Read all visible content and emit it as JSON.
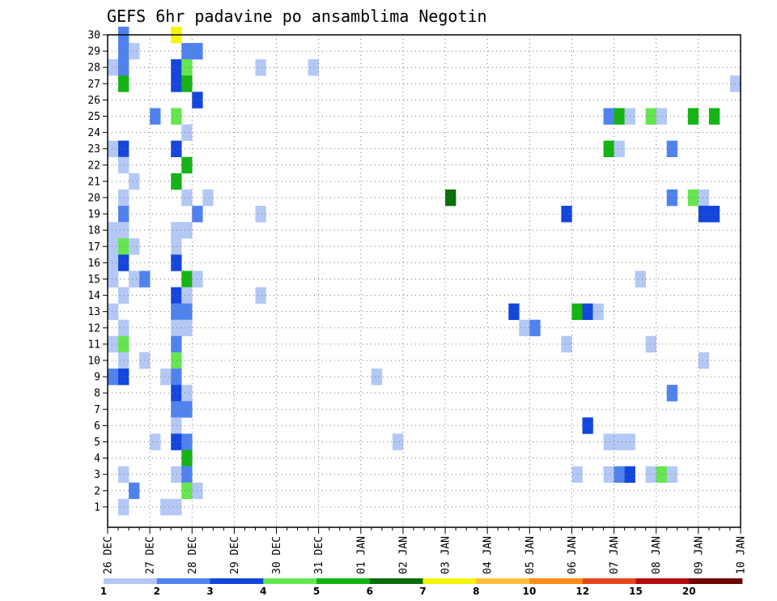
{
  "chart_data": {
    "type": "heatmap",
    "title": "GEFS 6hr padavine po ansamblima Negotin",
    "y_ticks": [
      "1",
      "2",
      "3",
      "4",
      "5",
      "6",
      "7",
      "8",
      "9",
      "10",
      "11",
      "12",
      "13",
      "14",
      "15",
      "16",
      "17",
      "18",
      "19",
      "20",
      "21",
      "22",
      "23",
      "24",
      "25",
      "26",
      "27",
      "28",
      "29",
      "30"
    ],
    "x_ticks": [
      "26 DEC",
      "27 DEC",
      "28 DEC",
      "29 DEC",
      "30 DEC",
      "31 DEC",
      "01 JAN",
      "02 JAN",
      "03 JAN",
      "04 JAN",
      "05 JAN",
      "06 JAN",
      "07 JAN",
      "08 JAN",
      "09 JAN",
      "10 JAN"
    ],
    "x_range_days": [
      0,
      15
    ],
    "y_range": [
      0,
      30
    ],
    "grid": true,
    "legend": {
      "placement": "bottom",
      "labels": [
        "1",
        "2",
        "3",
        "4",
        "5",
        "6",
        "7",
        "8",
        "10",
        "12",
        "15",
        "20"
      ],
      "colors": [
        "#b4c8f5",
        "#5082ef",
        "#1446dc",
        "#64e650",
        "#14b414",
        "#0a6e0a",
        "#f5f500",
        "#ffbe3c",
        "#ff8c14",
        "#e6461e",
        "#b40a0a",
        "#6e0000"
      ]
    },
    "cells": [
      [
        0.25,
        30,
        2
      ],
      [
        1.5,
        30,
        7
      ],
      [
        0.25,
        29,
        2
      ],
      [
        0.5,
        29,
        1
      ],
      [
        1.75,
        29,
        2
      ],
      [
        2.0,
        29,
        2
      ],
      [
        0.0,
        28,
        1
      ],
      [
        0.25,
        28,
        2
      ],
      [
        1.5,
        28,
        3
      ],
      [
        1.75,
        28,
        4
      ],
      [
        3.5,
        28,
        1
      ],
      [
        4.75,
        28,
        1
      ],
      [
        0.25,
        27,
        5
      ],
      [
        1.5,
        27,
        3
      ],
      [
        1.75,
        27,
        5
      ],
      [
        14.75,
        27,
        1
      ],
      [
        2.0,
        26,
        3
      ],
      [
        1.0,
        25,
        2
      ],
      [
        1.5,
        25,
        4
      ],
      [
        11.75,
        25,
        2
      ],
      [
        12.0,
        25,
        5
      ],
      [
        12.25,
        25,
        1
      ],
      [
        12.75,
        25,
        4
      ],
      [
        13.0,
        25,
        1
      ],
      [
        13.75,
        25,
        5
      ],
      [
        14.25,
        25,
        5
      ],
      [
        1.75,
        24,
        1
      ],
      [
        0.0,
        23,
        1
      ],
      [
        0.25,
        23,
        3
      ],
      [
        1.5,
        23,
        3
      ],
      [
        11.75,
        23,
        5
      ],
      [
        12.0,
        23,
        1
      ],
      [
        13.25,
        23,
        2
      ],
      [
        0.25,
        22,
        1
      ],
      [
        1.75,
        22,
        5
      ],
      [
        0.5,
        21,
        1
      ],
      [
        1.5,
        21,
        5
      ],
      [
        0.25,
        20,
        1
      ],
      [
        1.75,
        20,
        1
      ],
      [
        2.25,
        20,
        1
      ],
      [
        8.0,
        20,
        6
      ],
      [
        13.25,
        20,
        2
      ],
      [
        13.75,
        20,
        4
      ],
      [
        14.0,
        20,
        1
      ],
      [
        0.25,
        19,
        2
      ],
      [
        2.0,
        19,
        2
      ],
      [
        3.5,
        19,
        1
      ],
      [
        10.75,
        19,
        3
      ],
      [
        14.0,
        19,
        3
      ],
      [
        14.25,
        19,
        3
      ],
      [
        0.0,
        18,
        1
      ],
      [
        0.25,
        18,
        1
      ],
      [
        1.5,
        18,
        1
      ],
      [
        1.75,
        18,
        1
      ],
      [
        0.0,
        17,
        1
      ],
      [
        0.25,
        17,
        4
      ],
      [
        0.5,
        17,
        1
      ],
      [
        1.5,
        17,
        1
      ],
      [
        0.0,
        16,
        1
      ],
      [
        0.25,
        16,
        3
      ],
      [
        1.5,
        16,
        3
      ],
      [
        0.0,
        15,
        1
      ],
      [
        0.5,
        15,
        1
      ],
      [
        0.75,
        15,
        2
      ],
      [
        1.75,
        15,
        5
      ],
      [
        2.0,
        15,
        1
      ],
      [
        12.5,
        15,
        1
      ],
      [
        0.25,
        14,
        1
      ],
      [
        1.5,
        14,
        3
      ],
      [
        1.75,
        14,
        1
      ],
      [
        3.5,
        14,
        1
      ],
      [
        0.0,
        13,
        1
      ],
      [
        1.5,
        13,
        2
      ],
      [
        1.75,
        13,
        2
      ],
      [
        9.5,
        13,
        3
      ],
      [
        11.0,
        13,
        5
      ],
      [
        11.25,
        13,
        3
      ],
      [
        11.5,
        13,
        1
      ],
      [
        0.25,
        12,
        1
      ],
      [
        1.5,
        12,
        1
      ],
      [
        1.75,
        12,
        1
      ],
      [
        9.75,
        12,
        1
      ],
      [
        10.0,
        12,
        2
      ],
      [
        0.0,
        11,
        1
      ],
      [
        0.25,
        11,
        4
      ],
      [
        1.5,
        11,
        2
      ],
      [
        10.75,
        11,
        1
      ],
      [
        12.75,
        11,
        1
      ],
      [
        0.25,
        10,
        1
      ],
      [
        0.75,
        10,
        1
      ],
      [
        1.5,
        10,
        4
      ],
      [
        14.0,
        10,
        1
      ],
      [
        0.0,
        9,
        2
      ],
      [
        0.25,
        9,
        3
      ],
      [
        1.25,
        9,
        1
      ],
      [
        1.5,
        9,
        2
      ],
      [
        6.25,
        9,
        1
      ],
      [
        1.5,
        8,
        3
      ],
      [
        1.75,
        8,
        1
      ],
      [
        13.25,
        8,
        2
      ],
      [
        1.5,
        7,
        2
      ],
      [
        1.75,
        7,
        2
      ],
      [
        1.5,
        6,
        1
      ],
      [
        11.25,
        6,
        3
      ],
      [
        1.0,
        5,
        1
      ],
      [
        1.5,
        5,
        3
      ],
      [
        1.75,
        5,
        2
      ],
      [
        6.75,
        5,
        1
      ],
      [
        11.75,
        5,
        1
      ],
      [
        12.0,
        5,
        1
      ],
      [
        12.25,
        5,
        1
      ],
      [
        1.75,
        4,
        5
      ],
      [
        0.25,
        3,
        1
      ],
      [
        1.5,
        3,
        1
      ],
      [
        1.75,
        3,
        2
      ],
      [
        11.0,
        3,
        1
      ],
      [
        11.75,
        3,
        1
      ],
      [
        12.0,
        3,
        2
      ],
      [
        12.25,
        3,
        3
      ],
      [
        12.75,
        3,
        1
      ],
      [
        13.0,
        3,
        4
      ],
      [
        13.25,
        3,
        1
      ],
      [
        0.5,
        2,
        2
      ],
      [
        1.75,
        2,
        4
      ],
      [
        2.0,
        2,
        1
      ],
      [
        0.25,
        1,
        1
      ],
      [
        1.25,
        1,
        1
      ],
      [
        1.5,
        1,
        1
      ]
    ]
  }
}
